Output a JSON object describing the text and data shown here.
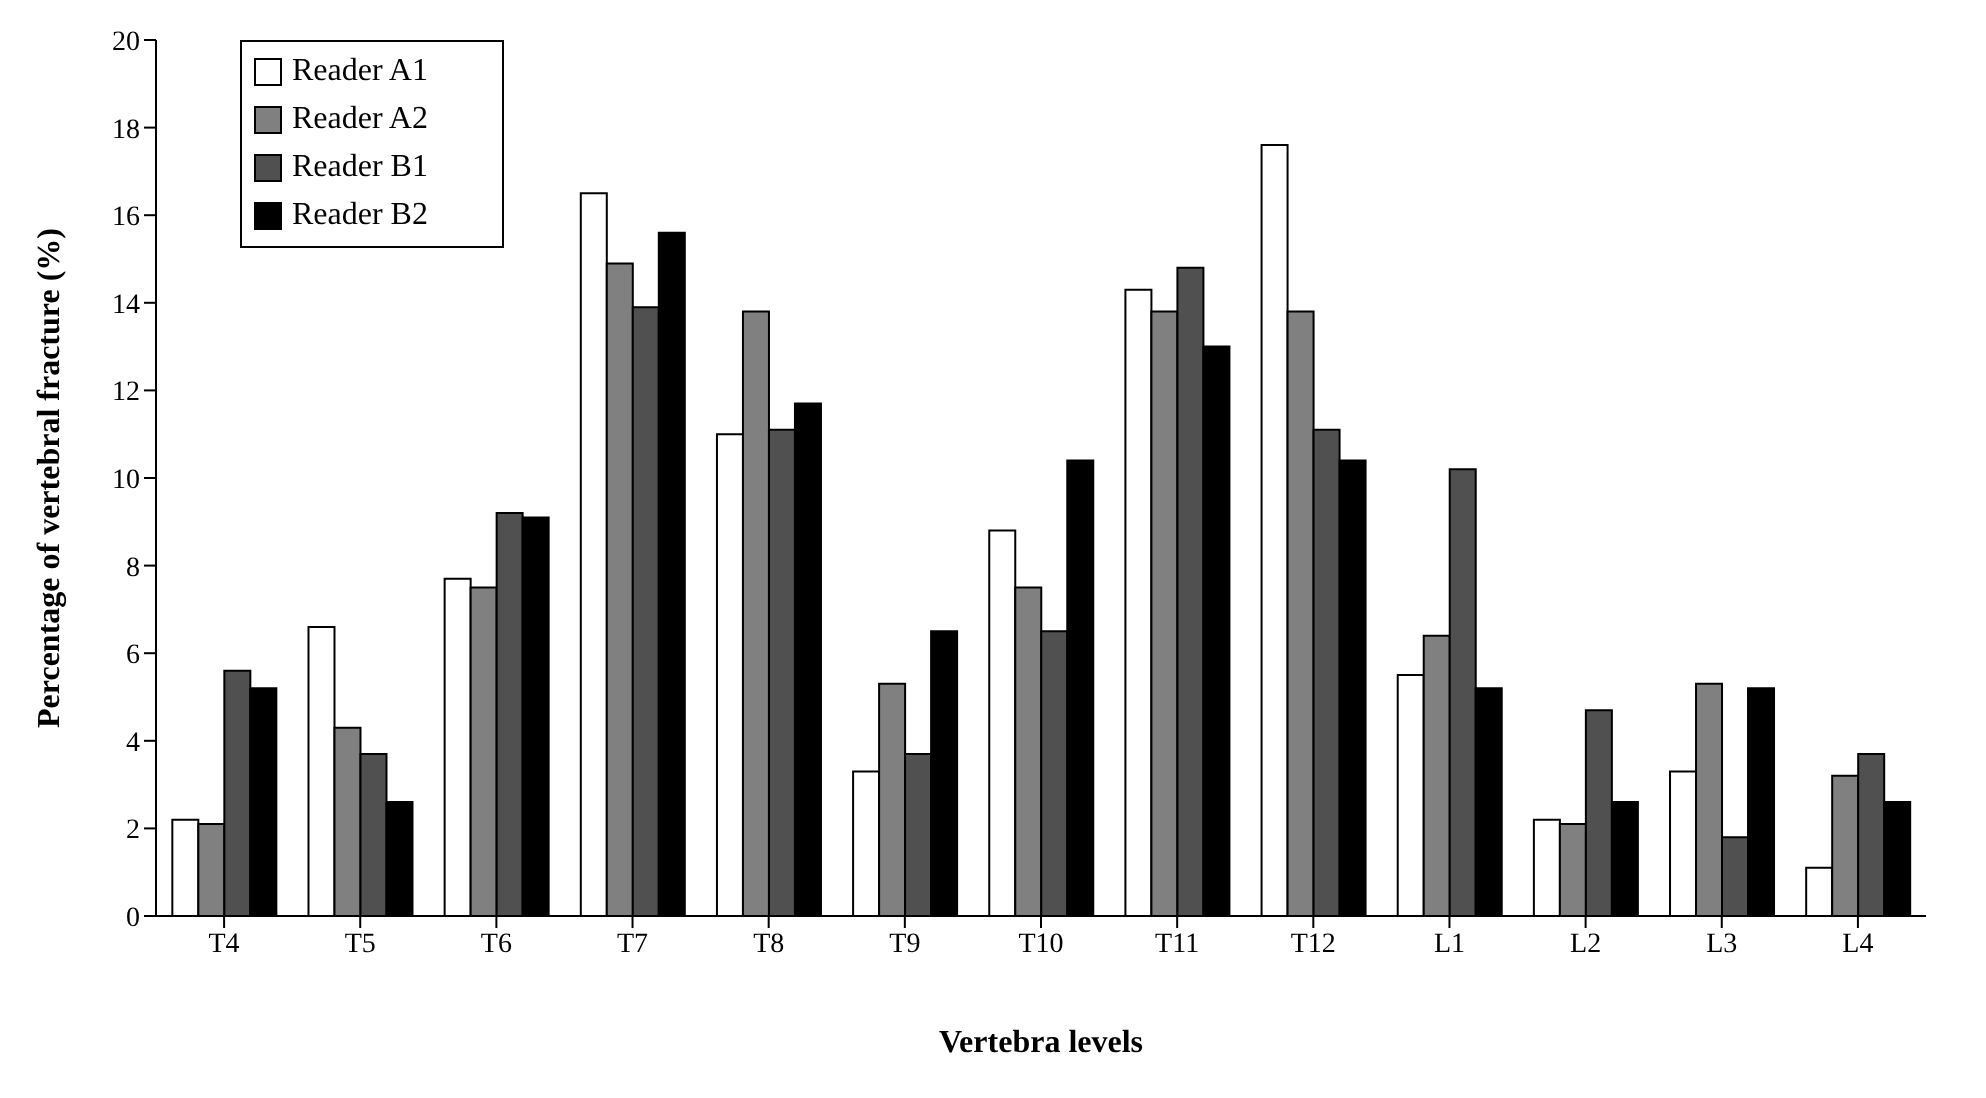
{
  "chart_data": {
    "type": "bar",
    "xlabel": "Vertebra levels",
    "ylabel": "Percentage of vertebral fracture (%)",
    "categories": [
      "T4",
      "T5",
      "T6",
      "T7",
      "T8",
      "T9",
      "T10",
      "T11",
      "T12",
      "L1",
      "L2",
      "L3",
      "L4"
    ],
    "series": [
      {
        "name": "Reader A1",
        "color": "#ffffff",
        "values": [
          2.2,
          6.6,
          7.7,
          16.5,
          11.0,
          3.3,
          8.8,
          14.3,
          17.6,
          5.5,
          2.2,
          3.3,
          1.1
        ]
      },
      {
        "name": "Reader A2",
        "color": "#808080",
        "values": [
          2.1,
          4.3,
          7.5,
          14.9,
          13.8,
          5.3,
          7.5,
          13.8,
          13.8,
          6.4,
          2.1,
          5.3,
          3.2
        ]
      },
      {
        "name": "Reader B1",
        "color": "#505050",
        "values": [
          5.6,
          3.7,
          9.2,
          13.9,
          11.1,
          3.7,
          6.5,
          14.8,
          11.1,
          10.2,
          4.7,
          1.8,
          3.7
        ]
      },
      {
        "name": "Reader B2",
        "color": "#000000",
        "values": [
          5.2,
          2.6,
          9.1,
          15.6,
          11.7,
          6.5,
          10.4,
          13.0,
          10.4,
          5.2,
          2.6,
          5.2,
          2.6
        ]
      }
    ],
    "ylim": [
      0,
      20
    ],
    "yticks": [
      0,
      2,
      4,
      6,
      8,
      10,
      12,
      14,
      16,
      18,
      20
    ],
    "grid": false,
    "legend": "top left"
  }
}
